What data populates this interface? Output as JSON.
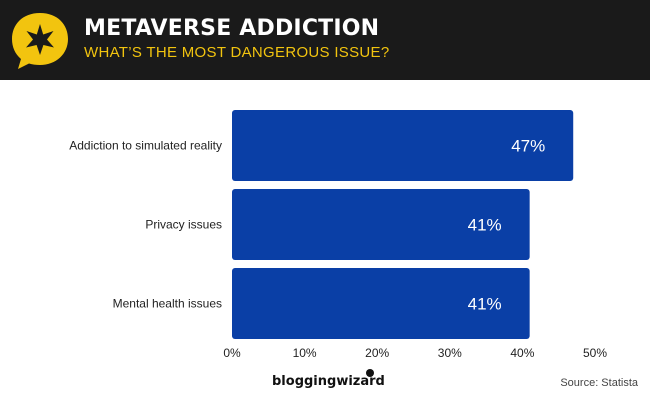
{
  "header": {
    "title": "METAVERSE ADDICTION",
    "subtitle": "WHAT’S THE MOST DANGEROUS ISSUE?",
    "badge_icon": "star-speech-bubble-icon"
  },
  "colors": {
    "header_bg": "#1a1a1a",
    "accent_yellow": "#f2c40f",
    "bar": "#0a3fa6",
    "bar_label": "#ffffff",
    "text": "#222222"
  },
  "chart_data": {
    "type": "bar",
    "orientation": "horizontal",
    "title": "METAVERSE ADDICTION",
    "subtitle": "WHAT’S THE MOST DANGEROUS ISSUE?",
    "categories": [
      "Addiction to simulated reality",
      "Privacy issues",
      "Mental health issues"
    ],
    "values": [
      47,
      41,
      41
    ],
    "value_labels": [
      "47%",
      "41%",
      "41%"
    ],
    "xlim": [
      0,
      50
    ],
    "xticks": [
      0,
      10,
      20,
      30,
      40,
      50
    ],
    "xtick_labels": [
      "0%",
      "10%",
      "20%",
      "30%",
      "40%",
      "50%"
    ],
    "xlabel": "",
    "ylabel": "",
    "grid": false,
    "legend": "none"
  },
  "footer": {
    "brand": "bloggingwizard",
    "source": "Source: Statista"
  }
}
